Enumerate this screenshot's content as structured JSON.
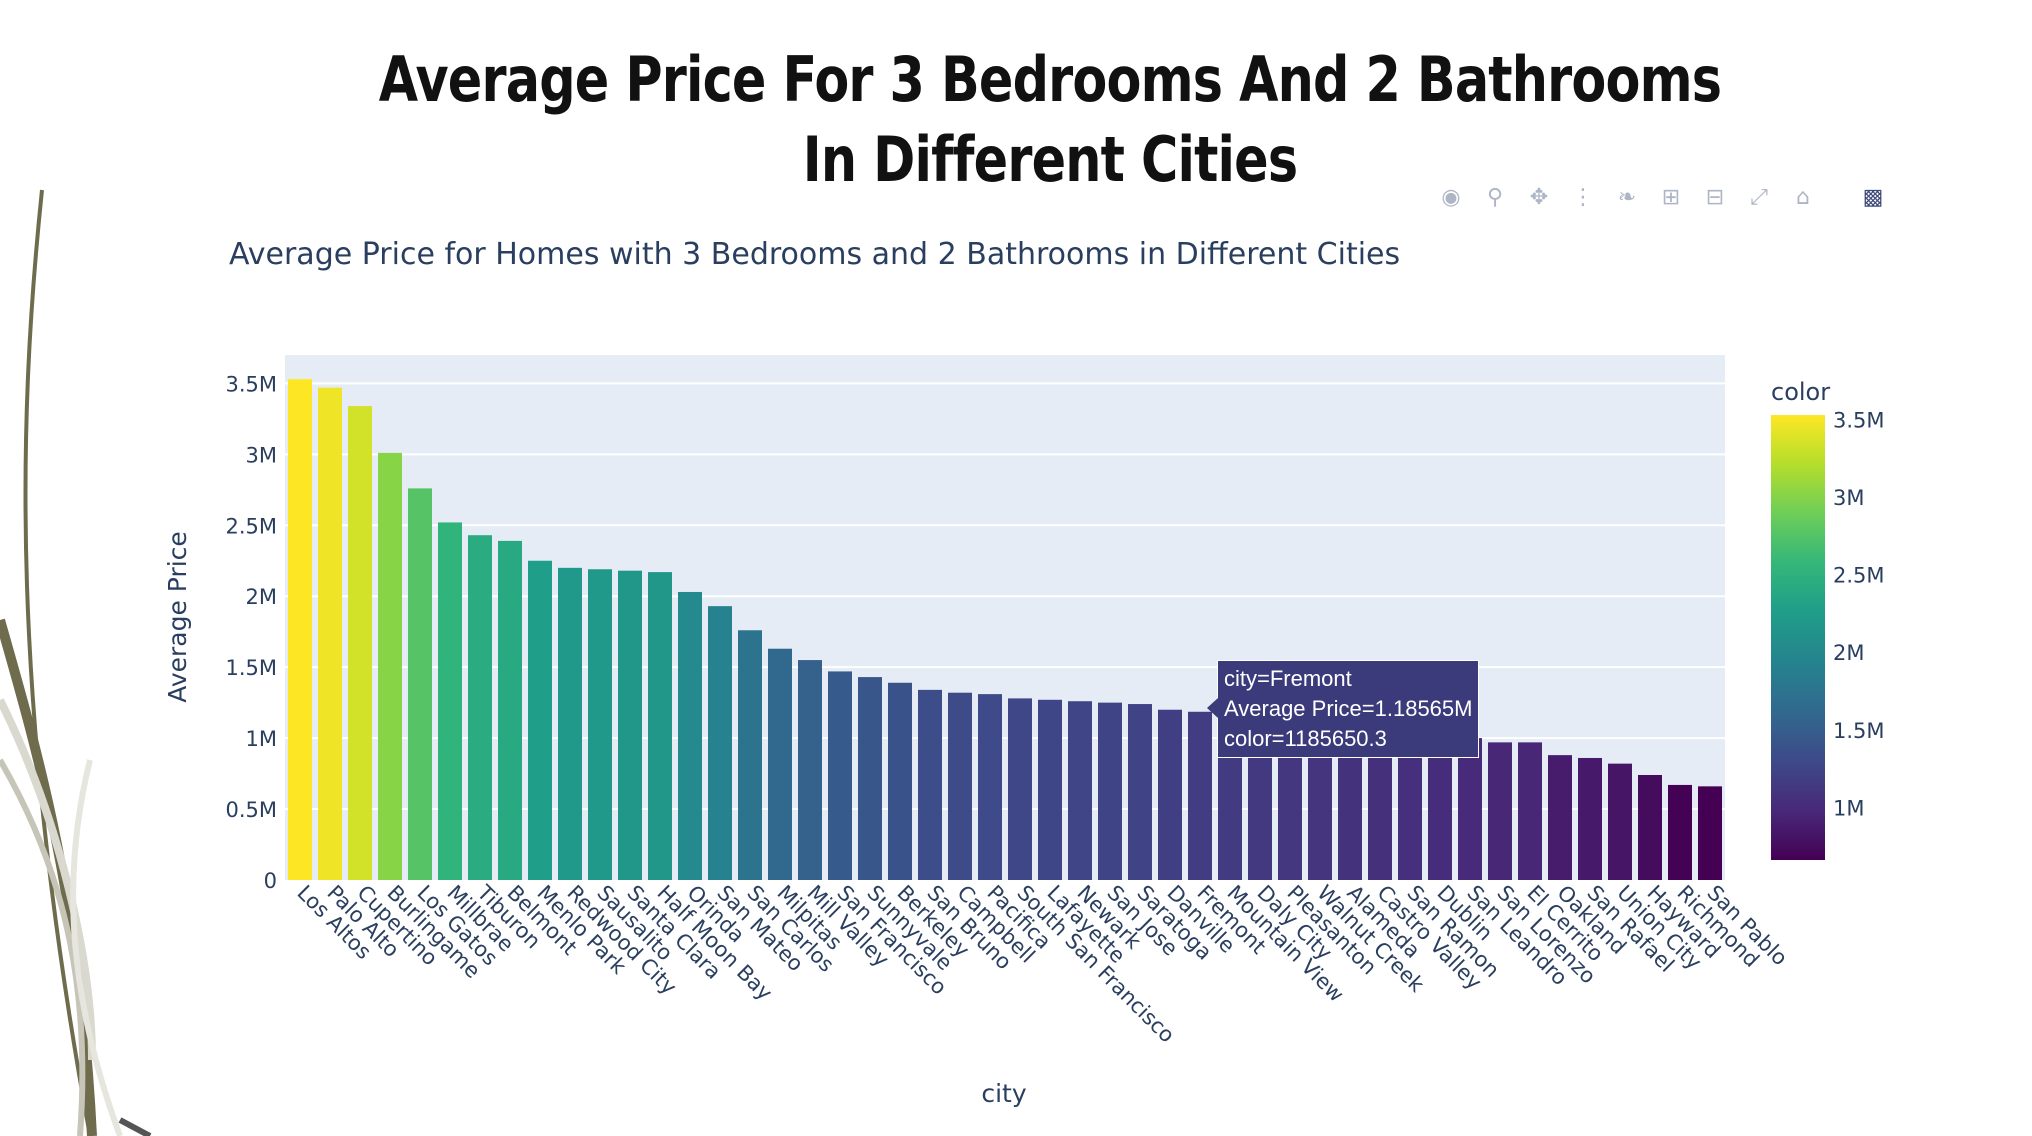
{
  "slide": {
    "title_line1": "Average Price For 3 Bedrooms And 2 Bathrooms",
    "title_line2": "In Different Cities"
  },
  "modebar": {
    "icons": [
      "camera-icon",
      "zoom-icon",
      "pan-icon",
      "box-select-icon",
      "lasso-select-icon",
      "zoom-in-icon",
      "zoom-out-icon",
      "autoscale-icon",
      "reset-axes-icon",
      "plotly-logo-icon"
    ]
  },
  "tooltip": {
    "line1": "city=Fremont",
    "line2": "Average Price=1.18565M",
    "line3": "color=1185650.3"
  },
  "chart_data": {
    "type": "bar",
    "title": "Average Price for Homes with 3 Bedrooms and 2 Bathrooms in Different Cities",
    "xlabel": "city",
    "ylabel": "Average Price",
    "ylim": [
      0,
      3700000
    ],
    "yticks": [
      0,
      500000,
      1000000,
      1500000,
      2000000,
      2500000,
      3000000,
      3500000
    ],
    "ytick_labels": [
      "0",
      "0.5M",
      "1M",
      "1.5M",
      "2M",
      "2.5M",
      "3M",
      "3.5M"
    ],
    "grid": true,
    "background": "#e5ecf6",
    "colorscale": "viridis",
    "colorbar": {
      "title": "color",
      "ticks": [
        1000000,
        1500000,
        2000000,
        2500000,
        3000000,
        3500000
      ],
      "tick_labels": [
        "1M",
        "1.5M",
        "2M",
        "2.5M",
        "3M",
        "3.5M"
      ],
      "range": [
        660000,
        3530000
      ]
    },
    "categories": [
      "Los Altos",
      "Palo Alto",
      "Cupertino",
      "Burlingame",
      "Los Gatos",
      "Millbrae",
      "Tiburon",
      "Belmont",
      "Menlo Park",
      "Redwood City",
      "Sausalito",
      "Santa Clara",
      "Half Moon Bay",
      "Orinda",
      "San Mateo",
      "San Carlos",
      "Milpitas",
      "Mill Valley",
      "San Francisco",
      "Sunnyvale",
      "Berkeley",
      "San Bruno",
      "Campbell",
      "Pacifica",
      "South San Francisco",
      "Lafayette",
      "Newark",
      "San Jose",
      "Saratoga",
      "Danville",
      "Fremont",
      "Mountain View",
      "Daly City",
      "Pleasanton",
      "Walnut Creek",
      "Alameda",
      "Castro Valley",
      "San Ramon",
      "Dublin",
      "San Leandro",
      "San Lorenzo",
      "El Cerrito",
      "Oakland",
      "San Rafael",
      "Union City",
      "Hayward",
      "Richmond",
      "San Pablo"
    ],
    "values": [
      3530000,
      3470000,
      3340000,
      3010000,
      2760000,
      2520000,
      2430000,
      2390000,
      2250000,
      2200000,
      2190000,
      2180000,
      2170000,
      2030000,
      1930000,
      1760000,
      1630000,
      1550000,
      1470000,
      1430000,
      1390000,
      1340000,
      1320000,
      1310000,
      1280000,
      1270000,
      1260000,
      1250000,
      1240000,
      1200000,
      1185650.3,
      1160000,
      1140000,
      1120000,
      1100000,
      1080000,
      1060000,
      1050000,
      1030000,
      1000000,
      970000,
      970000,
      880000,
      860000,
      820000,
      740000,
      670000,
      660000
    ]
  }
}
